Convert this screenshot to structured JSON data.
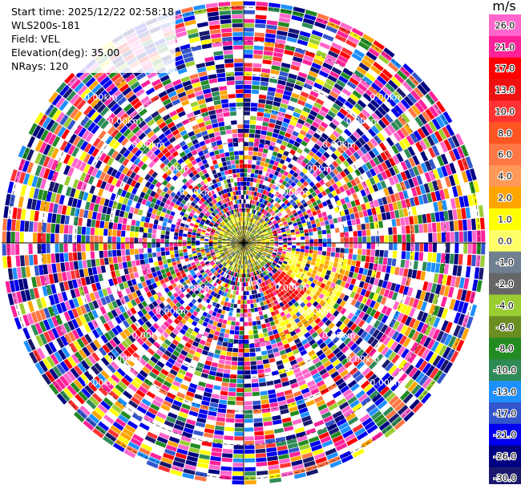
{
  "info": {
    "start_time": "Start time: 2025/12/22 02:58:18",
    "station": "WLS200s-181",
    "field": "Field: VEL",
    "elevation": "Elevation(deg): 35.00",
    "nrays": "NRays: 120"
  },
  "chart_data": {
    "type": "heatmap",
    "projection": "polar (PPI)",
    "field": "VEL",
    "units": "m/s",
    "n_rays": 120,
    "range_ring_labels": [
      "0.00km",
      "0.00km",
      "0.00km",
      "0.00km",
      "0.00km",
      "0.00km",
      "0.00km",
      "0.00km",
      "0.00km",
      "0.00km",
      "0.00km",
      "0.00km",
      "0.00km",
      "0.00km",
      "0.00km",
      "0.00km",
      "0.00km",
      "0.00km",
      "0.00km",
      "0.00km"
    ],
    "colorbar": {
      "title": "m/s",
      "tick_labels": [
        "26.0",
        "21.0",
        "17.0",
        "13.0",
        "10.0",
        "8.0",
        "6.0",
        "4.0",
        "2.0",
        "1.0",
        "0.0",
        "-1.0",
        "-2.0",
        "-4.0",
        "-6.0",
        "-8.0",
        "-10.0",
        "-13.0",
        "-17.0",
        "-21.0",
        "-26.0",
        "-30.0"
      ],
      "colors": [
        "#ff66cc",
        "#ff2299",
        "#ff0000",
        "#ee1111",
        "#ff3333",
        "#ff5522",
        "#ff7744",
        "#ff9955",
        "#ffa500",
        "#ffff00",
        "#ffff66",
        "#708090",
        "#666666",
        "#9acd32",
        "#6b8e23",
        "#228b22",
        "#2e8b57",
        "#1e90ff",
        "#3355cc",
        "#0000ee",
        "#000080",
        "#191970"
      ]
    }
  }
}
